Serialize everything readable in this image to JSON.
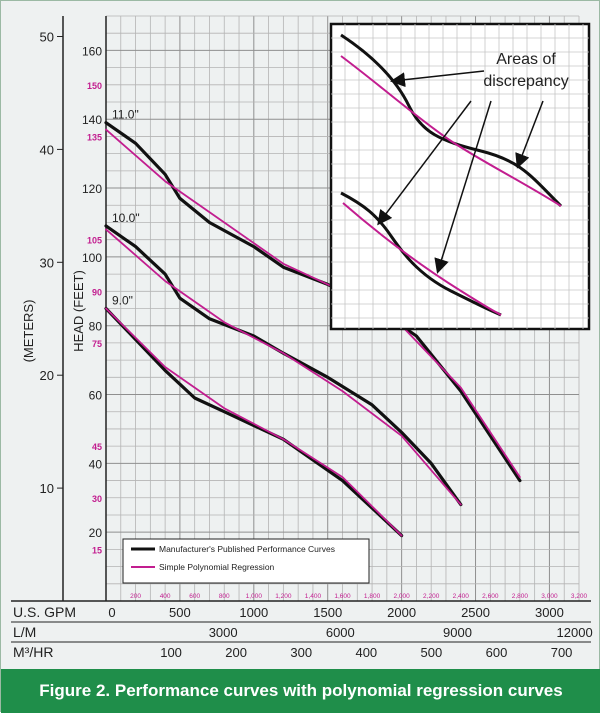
{
  "figure": {
    "caption": "Figure 2. Performance curves with polynomial regression curves",
    "background": "#eef1f1",
    "caption_background": "#1f8e4a",
    "caption_color": "#ffffff"
  },
  "chart_data": {
    "type": "line",
    "x_axis": {
      "primary_label": "U.S. GPM",
      "range": [
        0,
        3200
      ],
      "ticks": [
        0,
        500,
        1000,
        1500,
        2000,
        2500,
        3000
      ],
      "minor_ticks": [
        200,
        400,
        600,
        800,
        1000,
        1200,
        1400,
        1600,
        1800,
        2000,
        2200,
        2400,
        2600,
        2800,
        3000,
        3200
      ],
      "secondary_axes": [
        {
          "label": "L/M",
          "ticks": [
            3000,
            6000,
            9000,
            12000
          ]
        },
        {
          "label": "M³/HR",
          "ticks": [
            100,
            200,
            300,
            400,
            500,
            600,
            700
          ]
        }
      ]
    },
    "y_axis": {
      "label": "HEAD (FEET)",
      "range": [
        0,
        170
      ],
      "ticks": [
        20,
        40,
        60,
        80,
        100,
        120,
        140,
        160
      ],
      "secondary_ticks": [
        15,
        30,
        45,
        75,
        90,
        105,
        135,
        150
      ],
      "secondary_color": "#c21d8f"
    },
    "meters_axis": {
      "label": "(METERS)",
      "ticks": [
        10,
        20,
        30,
        40,
        50
      ]
    },
    "grid": true,
    "legend": {
      "placement": "bottom-left",
      "entries": [
        {
          "label": "Manufacturer's Published Performance Curves",
          "color": "#111111"
        },
        {
          "label": "Simple Polynomial Regression",
          "color": "#c21d8f"
        }
      ]
    },
    "impeller_labels": [
      "11.0\"",
      "10.0\"",
      "9.0\""
    ],
    "series": [
      {
        "curve": "11.0\"",
        "style": "published",
        "x": [
          0,
          200,
          400,
          500,
          700,
          1000,
          1200,
          1500,
          1800,
          2100,
          2400,
          2800
        ],
        "y": [
          139,
          133,
          124,
          117,
          110,
          103,
          97,
          92,
          86,
          77,
          61,
          35
        ]
      },
      {
        "curve": "11.0\"",
        "style": "regression",
        "x": [
          0,
          400,
          800,
          1200,
          1600,
          2000,
          2400,
          2800
        ],
        "y": [
          137,
          122,
          110,
          98,
          90,
          80,
          62,
          36
        ]
      },
      {
        "curve": "10.0\"",
        "style": "published",
        "x": [
          0,
          200,
          400,
          500,
          700,
          1000,
          1200,
          1500,
          1800,
          2000,
          2200,
          2400
        ],
        "y": [
          109,
          103,
          95,
          88,
          82,
          77,
          72,
          65,
          57,
          49,
          40,
          28
        ]
      },
      {
        "curve": "10.0\"",
        "style": "regression",
        "x": [
          0,
          400,
          800,
          1200,
          1600,
          2000,
          2400
        ],
        "y": [
          108,
          93,
          81,
          72,
          61,
          48,
          28
        ]
      },
      {
        "curve": "9.0\"",
        "style": "published",
        "x": [
          0,
          200,
          400,
          500,
          600,
          800,
          1000,
          1200,
          1400,
          1600,
          1800,
          2000
        ],
        "y": [
          85,
          76,
          67,
          63,
          59,
          55,
          51,
          47,
          41,
          35,
          27,
          19
        ]
      },
      {
        "curve": "9.0\"",
        "style": "regression",
        "x": [
          0,
          400,
          800,
          1200,
          1600,
          2000
        ],
        "y": [
          85,
          68,
          56,
          47,
          36,
          19
        ]
      }
    ],
    "inset": {
      "annotation": "Areas of discrepancy"
    }
  }
}
